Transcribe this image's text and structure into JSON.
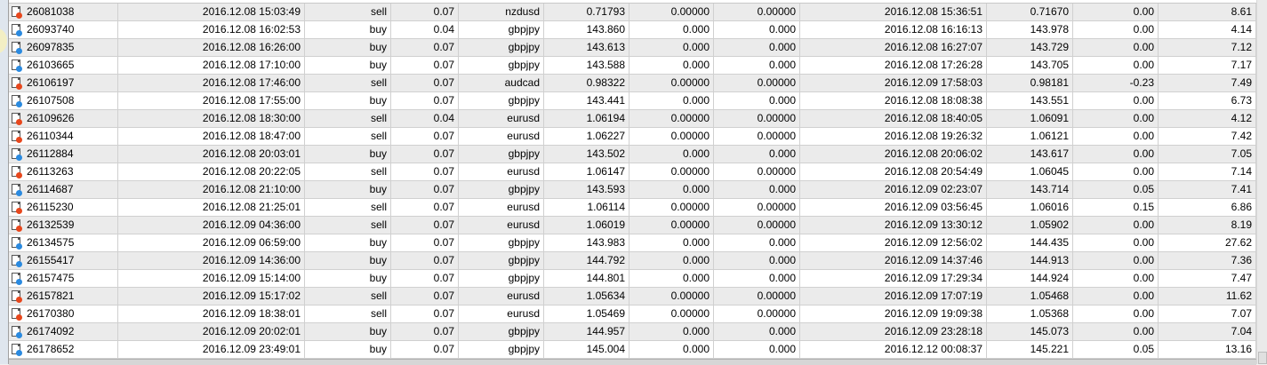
{
  "colors": {
    "sell_dot": "#e8471c",
    "buy_dot": "#2a8ae0",
    "alt_row": "#ebebeb"
  },
  "icons": {
    "sell": "order-sell-icon",
    "buy": "order-buy-icon"
  },
  "rows": [
    [
      "26081038",
      "2016.12.08 15:03:49",
      "sell",
      "0.07",
      "nzdusd",
      "0.71793",
      "0.00000",
      "0.00000",
      "2016.12.08 15:36:51",
      "0.71670",
      "0.00",
      "8.61"
    ],
    [
      "26093740",
      "2016.12.08 16:02:53",
      "buy",
      "0.04",
      "gbpjpy",
      "143.860",
      "0.000",
      "0.000",
      "2016.12.08 16:16:13",
      "143.978",
      "0.00",
      "4.14"
    ],
    [
      "26097835",
      "2016.12.08 16:26:00",
      "buy",
      "0.07",
      "gbpjpy",
      "143.613",
      "0.000",
      "0.000",
      "2016.12.08 16:27:07",
      "143.729",
      "0.00",
      "7.12"
    ],
    [
      "26103665",
      "2016.12.08 17:10:00",
      "buy",
      "0.07",
      "gbpjpy",
      "143.588",
      "0.000",
      "0.000",
      "2016.12.08 17:26:28",
      "143.705",
      "0.00",
      "7.17"
    ],
    [
      "26106197",
      "2016.12.08 17:46:00",
      "sell",
      "0.07",
      "audcad",
      "0.98322",
      "0.00000",
      "0.00000",
      "2016.12.09 17:58:03",
      "0.98181",
      "-0.23",
      "7.49"
    ],
    [
      "26107508",
      "2016.12.08 17:55:00",
      "buy",
      "0.07",
      "gbpjpy",
      "143.441",
      "0.000",
      "0.000",
      "2016.12.08 18:08:38",
      "143.551",
      "0.00",
      "6.73"
    ],
    [
      "26109626",
      "2016.12.08 18:30:00",
      "sell",
      "0.04",
      "eurusd",
      "1.06194",
      "0.00000",
      "0.00000",
      "2016.12.08 18:40:05",
      "1.06091",
      "0.00",
      "4.12"
    ],
    [
      "26110344",
      "2016.12.08 18:47:00",
      "sell",
      "0.07",
      "eurusd",
      "1.06227",
      "0.00000",
      "0.00000",
      "2016.12.08 19:26:32",
      "1.06121",
      "0.00",
      "7.42"
    ],
    [
      "26112884",
      "2016.12.08 20:03:01",
      "buy",
      "0.07",
      "gbpjpy",
      "143.502",
      "0.000",
      "0.000",
      "2016.12.08 20:06:02",
      "143.617",
      "0.00",
      "7.05"
    ],
    [
      "26113263",
      "2016.12.08 20:22:05",
      "sell",
      "0.07",
      "eurusd",
      "1.06147",
      "0.00000",
      "0.00000",
      "2016.12.08 20:54:49",
      "1.06045",
      "0.00",
      "7.14"
    ],
    [
      "26114687",
      "2016.12.08 21:10:00",
      "buy",
      "0.07",
      "gbpjpy",
      "143.593",
      "0.000",
      "0.000",
      "2016.12.09 02:23:07",
      "143.714",
      "0.05",
      "7.41"
    ],
    [
      "26115230",
      "2016.12.08 21:25:01",
      "sell",
      "0.07",
      "eurusd",
      "1.06114",
      "0.00000",
      "0.00000",
      "2016.12.09 03:56:45",
      "1.06016",
      "0.15",
      "6.86"
    ],
    [
      "26132539",
      "2016.12.09 04:36:00",
      "sell",
      "0.07",
      "eurusd",
      "1.06019",
      "0.00000",
      "0.00000",
      "2016.12.09 13:30:12",
      "1.05902",
      "0.00",
      "8.19"
    ],
    [
      "26134575",
      "2016.12.09 06:59:00",
      "buy",
      "0.07",
      "gbpjpy",
      "143.983",
      "0.000",
      "0.000",
      "2016.12.09 12:56:02",
      "144.435",
      "0.00",
      "27.62"
    ],
    [
      "26155417",
      "2016.12.09 14:36:00",
      "buy",
      "0.07",
      "gbpjpy",
      "144.792",
      "0.000",
      "0.000",
      "2016.12.09 14:37:46",
      "144.913",
      "0.00",
      "7.36"
    ],
    [
      "26157475",
      "2016.12.09 15:14:00",
      "buy",
      "0.07",
      "gbpjpy",
      "144.801",
      "0.000",
      "0.000",
      "2016.12.09 17:29:34",
      "144.924",
      "0.00",
      "7.47"
    ],
    [
      "26157821",
      "2016.12.09 15:17:02",
      "sell",
      "0.07",
      "eurusd",
      "1.05634",
      "0.00000",
      "0.00000",
      "2016.12.09 17:07:19",
      "1.05468",
      "0.00",
      "11.62"
    ],
    [
      "26170380",
      "2016.12.09 18:38:01",
      "sell",
      "0.07",
      "eurusd",
      "1.05469",
      "0.00000",
      "0.00000",
      "2016.12.09 19:09:38",
      "1.05368",
      "0.00",
      "7.07"
    ],
    [
      "26174092",
      "2016.12.09 20:02:01",
      "buy",
      "0.07",
      "gbpjpy",
      "144.957",
      "0.000",
      "0.000",
      "2016.12.09 23:28:18",
      "145.073",
      "0.00",
      "7.04"
    ],
    [
      "26178652",
      "2016.12.09 23:49:01",
      "buy",
      "0.07",
      "gbpjpy",
      "145.004",
      "0.000",
      "0.000",
      "2016.12.12 00:08:37",
      "145.221",
      "0.05",
      "13.16"
    ]
  ]
}
